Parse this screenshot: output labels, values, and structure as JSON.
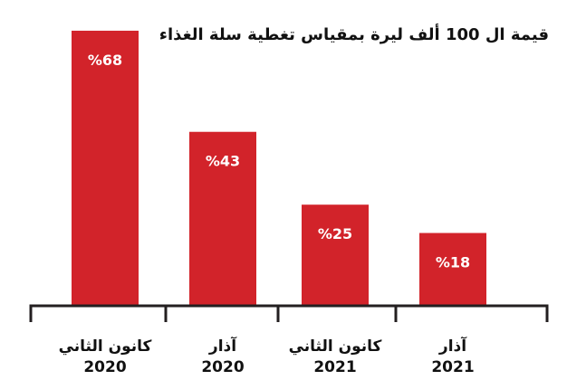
{
  "chart_data": {
    "type": "bar",
    "title": "قيمة ال 100 ألف ليرة بمقياس تغطية سلة الغذاء",
    "categories": [
      {
        "line1": "كانون الثاني",
        "line2": "2020"
      },
      {
        "line1": "آذار",
        "line2": "2020"
      },
      {
        "line1": "كانون الثاني",
        "line2": "2021"
      },
      {
        "line1": "آذار",
        "line2": "2021"
      }
    ],
    "values": [
      68,
      43,
      25,
      18
    ],
    "value_labels": [
      "%68",
      "%43",
      "%25",
      "%18"
    ],
    "ylim": [
      0,
      70
    ],
    "bar_color": "#d2232a",
    "axis_color": "#231f20",
    "grid": false,
    "legend": "none"
  }
}
